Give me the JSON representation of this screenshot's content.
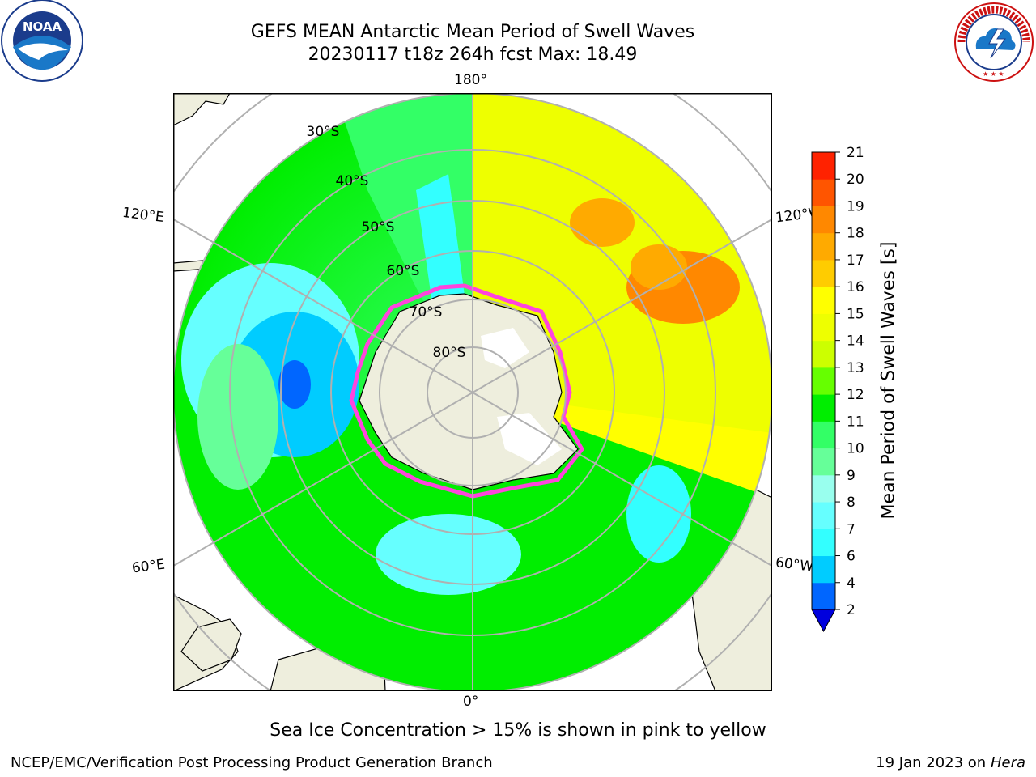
{
  "title": {
    "line1": "GEFS MEAN Antarctic Mean Period of Swell Waves",
    "line2": "20230117 t18z 264h fcst   Max: 18.49"
  },
  "logos": {
    "left": {
      "text": "NOAA",
      "icon": "noaa-logo"
    },
    "right": {
      "icon": "nws-logo",
      "ring_text": "NATIONAL WEATHER SERVICE"
    }
  },
  "map": {
    "projection": "south-polar-stereographic",
    "longitude_labels": {
      "top": "180°",
      "bottom": "0°",
      "upper_left": "120°E",
      "upper_right": "120°W",
      "lower_left": "60°E",
      "lower_right": "60°W"
    },
    "latitude_labels": [
      "30°S",
      "40°S",
      "50°S",
      "60°S",
      "70°S",
      "80°S"
    ],
    "land_color": "#eeeedd",
    "ice_overlay": "pink-to-yellow"
  },
  "colorbar": {
    "title": "Mean Period of Swell Waves [s]",
    "ticks": [
      "2",
      "4",
      "6",
      "7",
      "8",
      "9",
      "10",
      "11",
      "12",
      "13",
      "14",
      "15",
      "16",
      "17",
      "18",
      "19",
      "20",
      "21"
    ],
    "colors": [
      "#0066ff",
      "#00ccff",
      "#33ffff",
      "#66ffff",
      "#99ffee",
      "#66ff99",
      "#33ff66",
      "#00ee00",
      "#66ff00",
      "#ccff00",
      "#eeff00",
      "#ffff00",
      "#ffcc00",
      "#ffaa00",
      "#ff8800",
      "#ff5500",
      "#ff2200"
    ],
    "extend_below_color": "#0000dd"
  },
  "note": "Sea Ice Concentration > 15% is shown in pink to yellow",
  "footer": {
    "left": "NCEP/EMC/Verification Post Processing Product Generation Branch",
    "right_prefix": "19 Jan 2023 on ",
    "right_italic": "Hera"
  }
}
